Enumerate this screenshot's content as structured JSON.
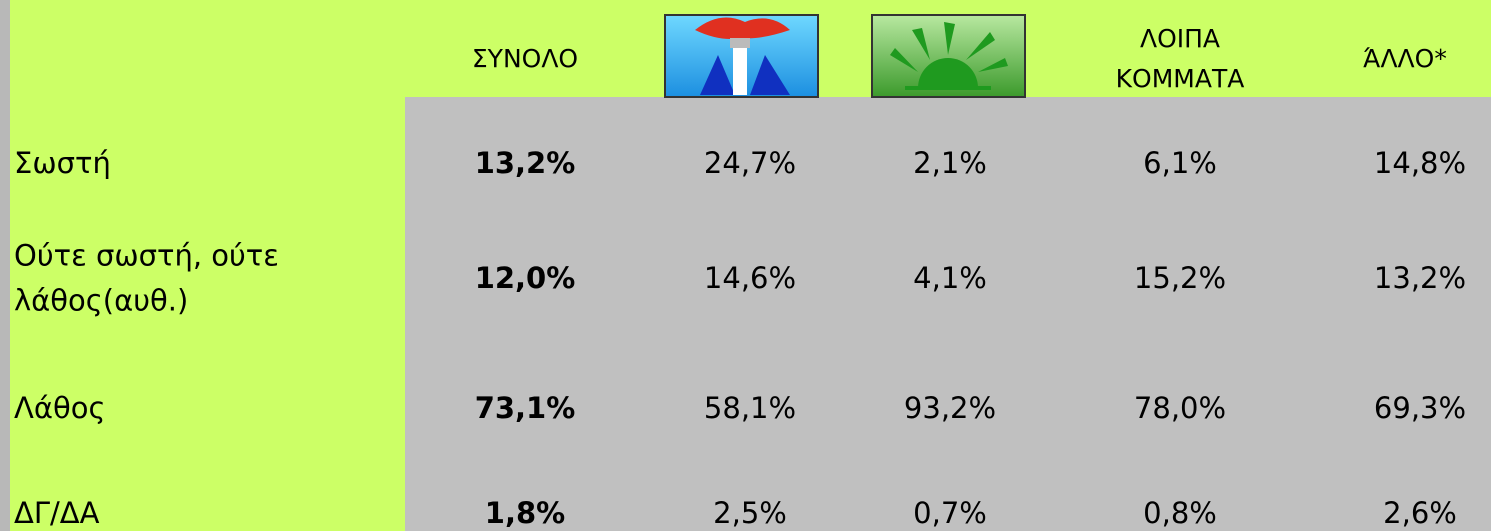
{
  "table": {
    "header": {
      "total": "ΣΥΝΟΛΟ",
      "others": [
        "ΛΟΙΠΑ",
        "ΚΟΜΜΑΤΑ"
      ],
      "other": "ΆΛΛΟ*"
    },
    "rows": [
      {
        "label": [
          "Σωστή"
        ],
        "values": [
          "13,2%",
          "24,7%",
          "2,1%",
          "6,1%",
          "14,8%"
        ]
      },
      {
        "label": [
          "Ούτε σωστή, ούτε",
          "λάθος(αυθ.)"
        ],
        "values": [
          "12,0%",
          "14,6%",
          "4,1%",
          "15,2%",
          "13,2%"
        ]
      },
      {
        "label": [
          "Λάθος"
        ],
        "values": [
          "73,1%",
          "58,1%",
          "93,2%",
          "78,0%",
          "69,3%"
        ]
      },
      {
        "label": [
          "ΔΓ/ΔΑ"
        ],
        "values": [
          "1,8%",
          "2,5%",
          "0,7%",
          "0,8%",
          "2,6%"
        ]
      }
    ]
  }
}
